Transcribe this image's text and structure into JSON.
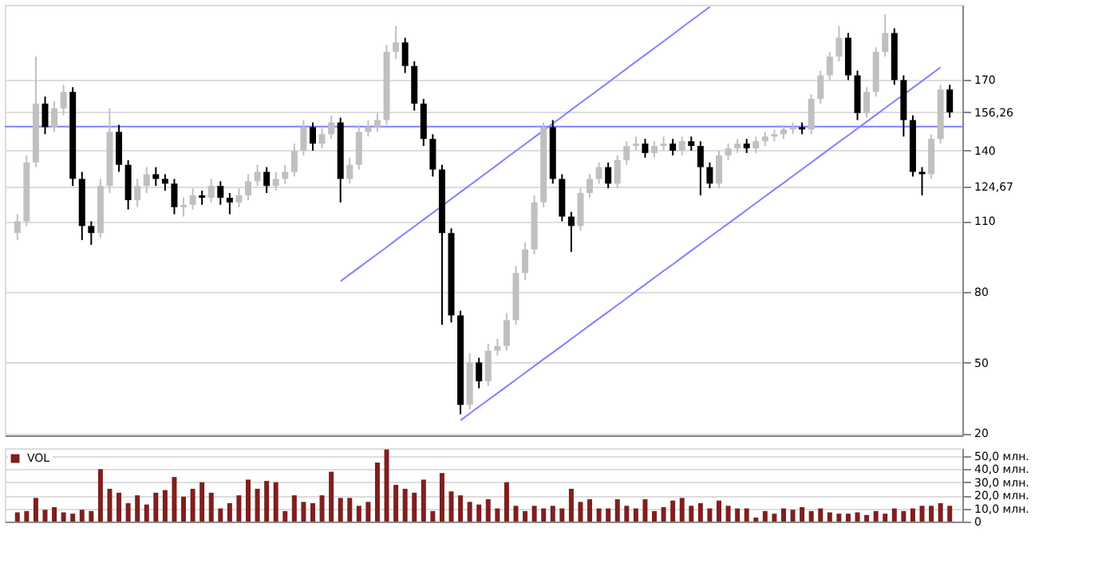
{
  "chart_data": [
    {
      "type": "candlestick",
      "categories": [
        null,
        null,
        null,
        null,
        null,
        null,
        null,
        null,
        null,
        null,
        null,
        null,
        null,
        null,
        null,
        null,
        null,
        null,
        null,
        null,
        null,
        null,
        null,
        null,
        null,
        null,
        null,
        null,
        null,
        null,
        null,
        null,
        null,
        null,
        null,
        null,
        null,
        null,
        null,
        null,
        null,
        null,
        null,
        null,
        null,
        null,
        null,
        null,
        null,
        null,
        null,
        null,
        null,
        null,
        null,
        null,
        null,
        null,
        null,
        null,
        null,
        null,
        null,
        null,
        null,
        null,
        null,
        null,
        null,
        null,
        null,
        null,
        null,
        null,
        null,
        null,
        null,
        null,
        null,
        null,
        null,
        null,
        null,
        null,
        null,
        null,
        null,
        null,
        null,
        null,
        null,
        null,
        null,
        null,
        null,
        null,
        null,
        null,
        null,
        null,
        null,
        null
      ],
      "colors": [
        "#c0c0c0",
        "#c0c0c0",
        "#c0c0c0",
        "#000000",
        "#c0c0c0",
        "#c0c0c0",
        "#000000",
        "#000000",
        "#000000",
        "#c0c0c0",
        "#c0c0c0",
        "#000000",
        "#000000",
        "#c0c0c0",
        "#c0c0c0",
        "#000000",
        "#000000",
        "#000000",
        "#c0c0c0",
        "#c0c0c0",
        "#000000",
        "#c0c0c0",
        "#000000",
        "#000000",
        "#c0c0c0",
        "#c0c0c0",
        "#c0c0c0",
        "#000000",
        "#c0c0c0",
        "#c0c0c0",
        "#c0c0c0",
        "#c0c0c0",
        "#000000",
        "#c0c0c0",
        "#c0c0c0",
        "#000000",
        "#c0c0c0",
        "#c0c0c0",
        "#c0c0c0",
        "#c0c0c0",
        "#c0c0c0",
        "#c0c0c0",
        "#000000",
        "#000000",
        "#000000",
        "#000000",
        "#000000",
        "#000000",
        "#000000",
        "#c0c0c0",
        "#000000",
        "#c0c0c0",
        "#c0c0c0",
        "#c0c0c0",
        "#c0c0c0",
        "#c0c0c0",
        "#c0c0c0",
        "#c0c0c0",
        "#000000",
        "#000000",
        "#000000",
        "#c0c0c0",
        "#c0c0c0",
        "#c0c0c0",
        "#000000",
        "#c0c0c0",
        "#c0c0c0",
        "#c0c0c0",
        "#000000",
        "#c0c0c0",
        "#c0c0c0",
        "#000000",
        "#c0c0c0",
        "#000000",
        "#000000",
        "#000000",
        "#c0c0c0",
        "#c0c0c0",
        "#c0c0c0",
        "#000000",
        "#c0c0c0",
        "#c0c0c0",
        "#c0c0c0",
        "#c0c0c0",
        "#c0c0c0",
        "#000000",
        "#c0c0c0",
        "#c0c0c0",
        "#c0c0c0",
        "#c0c0c0",
        "#000000",
        "#000000",
        "#c0c0c0",
        "#c0c0c0",
        "#c0c0c0",
        "#000000",
        "#000000",
        "#000000",
        "#000000",
        "#c0c0c0",
        "#c0c0c0",
        "#000000"
      ],
      "ohlc": [
        [
          105,
          113,
          102,
          110
        ],
        [
          110,
          138,
          108,
          135
        ],
        [
          135,
          180,
          133,
          160
        ],
        [
          160,
          163,
          147,
          150
        ],
        [
          150,
          161,
          148,
          158
        ],
        [
          158,
          168,
          155,
          165
        ],
        [
          165,
          167,
          125,
          128
        ],
        [
          128,
          131,
          102,
          108
        ],
        [
          108,
          110,
          100,
          105
        ],
        [
          105,
          128,
          103,
          125
        ],
        [
          125,
          158,
          122,
          148
        ],
        [
          148,
          151,
          131,
          134
        ],
        [
          134,
          136,
          115,
          119
        ],
        [
          119,
          128,
          116,
          125
        ],
        [
          125,
          133,
          122,
          130
        ],
        [
          130,
          133,
          125,
          128
        ],
        [
          128,
          130,
          123,
          126
        ],
        [
          126,
          128,
          113,
          116
        ],
        [
          116,
          120,
          112,
          117
        ],
        [
          117,
          124,
          115,
          121
        ],
        [
          121,
          123,
          117,
          120
        ],
        [
          120,
          128,
          118,
          125
        ],
        [
          125,
          127,
          117,
          120
        ],
        [
          120,
          122,
          113,
          118
        ],
        [
          118,
          124,
          116,
          121
        ],
        [
          121,
          130,
          119,
          127
        ],
        [
          127,
          134,
          125,
          131
        ],
        [
          131,
          133,
          122,
          125
        ],
        [
          125,
          131,
          123,
          128
        ],
        [
          128,
          134,
          126,
          131
        ],
        [
          131,
          143,
          129,
          140
        ],
        [
          140,
          153,
          138,
          150
        ],
        [
          150,
          152,
          140,
          143
        ],
        [
          143,
          150,
          141,
          147
        ],
        [
          147,
          155,
          145,
          152
        ],
        [
          152,
          154,
          118,
          128
        ],
        [
          128,
          137,
          126,
          134
        ],
        [
          134,
          151,
          132,
          148
        ],
        [
          148,
          153,
          146,
          150
        ],
        [
          150,
          156,
          148,
          153
        ],
        [
          153,
          185,
          151,
          182
        ],
        [
          182,
          193,
          179,
          186
        ],
        [
          186,
          188,
          173,
          176
        ],
        [
          176,
          178,
          157,
          160
        ],
        [
          160,
          162,
          142,
          145
        ],
        [
          145,
          147,
          129,
          132
        ],
        [
          132,
          134,
          66,
          105
        ],
        [
          105,
          107,
          67,
          70
        ],
        [
          70,
          72,
          28,
          32
        ],
        [
          32,
          54,
          30,
          50
        ],
        [
          50,
          52,
          39,
          42
        ],
        [
          42,
          58,
          40,
          55
        ],
        [
          55,
          60,
          53,
          57
        ],
        [
          57,
          71,
          55,
          68
        ],
        [
          68,
          91,
          66,
          88
        ],
        [
          88,
          101,
          85,
          98
        ],
        [
          98,
          121,
          96,
          118
        ],
        [
          118,
          152,
          116,
          150
        ],
        [
          150,
          153,
          126,
          128
        ],
        [
          128,
          130,
          110,
          112
        ],
        [
          112,
          114,
          97,
          108
        ],
        [
          108,
          124,
          106,
          122
        ],
        [
          122,
          130,
          120,
          128
        ],
        [
          128,
          135,
          126,
          133
        ],
        [
          133,
          135,
          124,
          126
        ],
        [
          126,
          138,
          124,
          136
        ],
        [
          136,
          144,
          134,
          142
        ],
        [
          142,
          146,
          140,
          143
        ],
        [
          143,
          145,
          137,
          139
        ],
        [
          139,
          144,
          137,
          142
        ],
        [
          142,
          146,
          140,
          143
        ],
        [
          143,
          145,
          138,
          140
        ],
        [
          140,
          146,
          138,
          144
        ],
        [
          144,
          146,
          140,
          142
        ],
        [
          142,
          144,
          121,
          133
        ],
        [
          133,
          135,
          124,
          126
        ],
        [
          126,
          140,
          124,
          138
        ],
        [
          138,
          143,
          136,
          141
        ],
        [
          141,
          145,
          139,
          143
        ],
        [
          143,
          145,
          139,
          141
        ],
        [
          141,
          146,
          139,
          144
        ],
        [
          144,
          148,
          142,
          146
        ],
        [
          146,
          149,
          144,
          147
        ],
        [
          147,
          151,
          145,
          149
        ],
        [
          149,
          152,
          147,
          150
        ],
        [
          150,
          152,
          147,
          149
        ],
        [
          149,
          164,
          147,
          162
        ],
        [
          162,
          174,
          160,
          172
        ],
        [
          172,
          182,
          170,
          180
        ],
        [
          180,
          193,
          178,
          188
        ],
        [
          188,
          190,
          170,
          172
        ],
        [
          172,
          174,
          153,
          156
        ],
        [
          156,
          167,
          154,
          165
        ],
        [
          165,
          184,
          163,
          182
        ],
        [
          182,
          198,
          180,
          190
        ],
        [
          190,
          192,
          168,
          170
        ],
        [
          170,
          172,
          146,
          153
        ],
        [
          153,
          155,
          129,
          131
        ],
        [
          131,
          133,
          121,
          130
        ],
        [
          130,
          147,
          128,
          145
        ],
        [
          145,
          168,
          143,
          166
        ],
        [
          166,
          168,
          154,
          156.26
        ]
      ],
      "series": [
        {
          "type": "line",
          "color": "#8080ff",
          "values": [
            null,
            null,
            null,
            null,
            null,
            null,
            null,
            null,
            null,
            null,
            null,
            null,
            null,
            null,
            null,
            null,
            null,
            null,
            null,
            null,
            null,
            null,
            null,
            null,
            null,
            null,
            null,
            null,
            null,
            null,
            null,
            null,
            null,
            null,
            null,
            84.5,
            87.4,
            90.3,
            93.2,
            96.1,
            99.0,
            102.0,
            104.9,
            107.8,
            110.7,
            113.6,
            116.5,
            119.5,
            122.4,
            125.3,
            128.2,
            131.1,
            134.0,
            137.0,
            139.9,
            142.8,
            145.7,
            148.6,
            151.5,
            154.4,
            157.4,
            160.3,
            163.2,
            166.1,
            169.0,
            171.9,
            174.9,
            177.8,
            180.7,
            183.6,
            186.5,
            189.4,
            192.4,
            195.3,
            198.2,
            201.1,
            null,
            null,
            null,
            null,
            null,
            null,
            null,
            null,
            null,
            null,
            null,
            null,
            null,
            null,
            null,
            null,
            null,
            null,
            null,
            null,
            null,
            null,
            null,
            null,
            null,
            null
          ]
        },
        {
          "type": "line",
          "color": "#8080ff",
          "values": [
            null,
            null,
            null,
            null,
            null,
            null,
            null,
            null,
            null,
            null,
            null,
            null,
            null,
            null,
            null,
            null,
            null,
            null,
            null,
            null,
            null,
            null,
            null,
            null,
            null,
            null,
            null,
            null,
            null,
            null,
            null,
            null,
            null,
            null,
            null,
            null,
            null,
            null,
            null,
            null,
            null,
            null,
            null,
            null,
            null,
            null,
            null,
            null,
            25.4,
            28.3,
            31.2,
            34.1,
            36.9,
            39.8,
            42.7,
            45.6,
            48.5,
            51.4,
            54.2,
            57.1,
            60.0,
            62.9,
            65.8,
            68.7,
            71.5,
            74.4,
            77.3,
            80.2,
            83.1,
            86.0,
            88.9,
            91.7,
            94.6,
            97.5,
            100.4,
            103.3,
            106.2,
            109.0,
            111.9,
            114.8,
            117.7,
            120.6,
            123.5,
            126.3,
            129.2,
            132.1,
            135.0,
            137.9,
            140.8,
            143.7,
            146.5,
            149.4,
            152.3,
            155.2,
            158.1,
            161.0,
            163.8,
            166.7,
            169.6,
            172.5,
            175.4,
            null
          ]
        }
      ],
      "ref_lines": [
        {
          "axis": "y",
          "value": 150.2,
          "color": "#8080ff"
        }
      ],
      "ylim": [
        19,
        202
      ],
      "yticks": [
        {
          "value": 20,
          "label": "20"
        },
        {
          "value": 50,
          "label": "50"
        },
        {
          "value": 80,
          "label": "80"
        },
        {
          "value": 110,
          "label": "110"
        },
        {
          "value": 124.67,
          "label": "124,67"
        },
        {
          "value": 140,
          "label": "140"
        },
        {
          "value": 156.26,
          "label": "156,26"
        },
        {
          "value": 170,
          "label": "170"
        }
      ],
      "grid": "y",
      "tick_labels": "y"
    },
    {
      "type": "bar",
      "legend": "top left",
      "categories": [
        null,
        null,
        null,
        null,
        null,
        null,
        null,
        null,
        null,
        null,
        null,
        null,
        null,
        null,
        null,
        null,
        null,
        null,
        null,
        null,
        null,
        null,
        null,
        null,
        null,
        null,
        null,
        null,
        null,
        null,
        null,
        null,
        null,
        null,
        null,
        null,
        null,
        null,
        null,
        null,
        null,
        null,
        null,
        null,
        null,
        null,
        null,
        null,
        null,
        null,
        null,
        null,
        null,
        null,
        null,
        null,
        null,
        null,
        null,
        null,
        null,
        null,
        null,
        null,
        null,
        null,
        null,
        null,
        null,
        null,
        null,
        null,
        null,
        null,
        null,
        null,
        null,
        null,
        null,
        null,
        null,
        null,
        null,
        null,
        null,
        null,
        null,
        null,
        null,
        null,
        null,
        null,
        null,
        null,
        null,
        null,
        null,
        null,
        null,
        null,
        null,
        null
      ],
      "series": [
        {
          "name": "VOL",
          "color": "#7f1f1f",
          "values": [
            7,
            8,
            18,
            9,
            11,
            7,
            6,
            9,
            8,
            40,
            25,
            22,
            14,
            20,
            13,
            22,
            24,
            34,
            19,
            25,
            30,
            22,
            10,
            14,
            20,
            32,
            25,
            31,
            30,
            8,
            20,
            15,
            14,
            20,
            38,
            18,
            18,
            12,
            15,
            45,
            55,
            28,
            25,
            22,
            32,
            8,
            37,
            23,
            20,
            15,
            13,
            17,
            10,
            30,
            12,
            8,
            12,
            10,
            12,
            10,
            25,
            15,
            17,
            10,
            10,
            17,
            12,
            10,
            17,
            8,
            11,
            16,
            18,
            12,
            14,
            10,
            16,
            12,
            10,
            10,
            3,
            8,
            6,
            10,
            9,
            11,
            8,
            10,
            7,
            6,
            6,
            7,
            5,
            8,
            6,
            10,
            8,
            10,
            12,
            12,
            14,
            12
          ]
        }
      ],
      "ylim": [
        0,
        56
      ],
      "yticks": [
        {
          "value": 0,
          "label": "0"
        },
        {
          "value": 10,
          "label": "10,0 млн."
        },
        {
          "value": 20,
          "label": "20,0 млн."
        },
        {
          "value": 30,
          "label": "30,0 млн."
        },
        {
          "value": 40,
          "label": "40,0 млн."
        },
        {
          "value": 50,
          "label": "50,0 млн."
        }
      ],
      "grid": "y",
      "tick_labels": "y"
    }
  ]
}
